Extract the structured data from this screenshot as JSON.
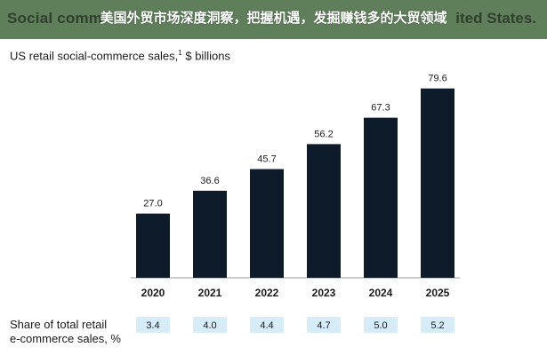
{
  "banner": {
    "overlay_text": "美国外贸市场深度洞察，把握机遇，发掘赚钱多的大贸领域",
    "under_text_left": "Social comm",
    "under_text_right": "ited States."
  },
  "chart_data": {
    "type": "bar",
    "title": "US retail social-commerce sales,",
    "title_footnote": "1",
    "title_unit": "$ billions",
    "categories": [
      "2020",
      "2021",
      "2022",
      "2023",
      "2024",
      "2025"
    ],
    "values": [
      27.0,
      36.6,
      45.7,
      56.2,
      67.3,
      79.6
    ],
    "value_labels": [
      "27.0",
      "36.6",
      "45.7",
      "56.2",
      "67.3",
      "79.6"
    ],
    "share_label_line1": "Share of total retail",
    "share_label_line2": "e-commerce sales, %",
    "share_values": [
      "3.4",
      "4.0",
      "4.4",
      "4.7",
      "5.0",
      "5.2"
    ],
    "colors": {
      "bar": "#0d1b2a",
      "share_box": "#d6ecf8",
      "baseline": "#9a9a9a",
      "banner": "#5f7f5a"
    }
  }
}
